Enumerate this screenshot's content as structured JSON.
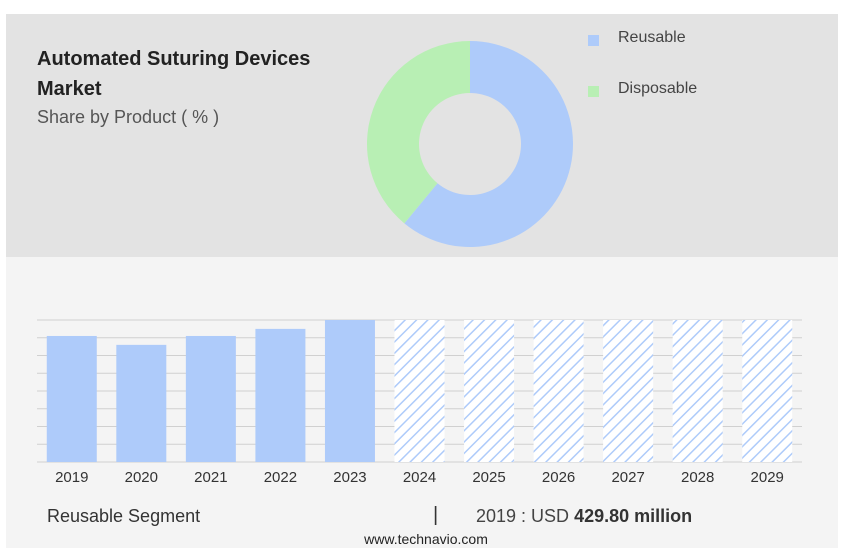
{
  "title": "Automated Suturing Devices Market",
  "subtitle": "Share by Product ( % )",
  "colors": {
    "reusable": "#aecbfa",
    "disposable": "#b8efb4",
    "forecast": "#aecbfa",
    "grid": "#d0d0d0"
  },
  "chart_data": [
    {
      "type": "pie",
      "variant": "donut",
      "title": "Share by Product ( % )",
      "categories": [
        "Reusable",
        "Disposable"
      ],
      "values": [
        61,
        39
      ],
      "legend": "top-right"
    },
    {
      "type": "bar",
      "categories": [
        "2019",
        "2020",
        "2021",
        "2022",
        "2023",
        "2024",
        "2025",
        "2026",
        "2027",
        "2028",
        "2029"
      ],
      "values": [
        71,
        66,
        71,
        75,
        80,
        80,
        80,
        80,
        80,
        80,
        80
      ],
      "forecast_from": "2024",
      "ylim": [
        0,
        80
      ],
      "grid": true,
      "xlabel": "",
      "ylabel": ""
    }
  ],
  "footer": {
    "segment": "Reusable Segment",
    "separator": "|",
    "value_prefix": "2019 : USD",
    "value": "429.80 million"
  },
  "source": "www.technavio.com"
}
